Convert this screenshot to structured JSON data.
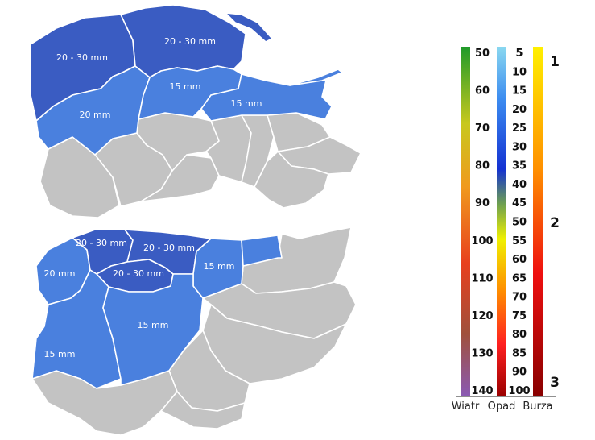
{
  "maps": {
    "upper": {
      "labels": [
        "20 - 30 mm",
        "20 - 30 mm",
        "20 mm",
        "15 mm",
        "15 mm"
      ]
    },
    "lower": {
      "labels": [
        "20 - 30 mm",
        "20 - 30 mm",
        "20 - 30 mm",
        "20 mm",
        "15 mm",
        "15 mm",
        "15 mm"
      ]
    }
  },
  "legend": {
    "wind": {
      "label": "Wiatr",
      "values": [
        "50",
        "60",
        "70",
        "80",
        "90",
        "100",
        "110",
        "120",
        "130",
        "140"
      ]
    },
    "precip": {
      "label": "Opad",
      "values": [
        "5",
        "10",
        "15",
        "20",
        "25",
        "30",
        "35",
        "40",
        "45",
        "50",
        "55",
        "60",
        "65",
        "70",
        "75",
        "80",
        "85",
        "90",
        "100"
      ]
    },
    "storm": {
      "label": "Burza",
      "values": [
        "1",
        "2",
        "3"
      ]
    }
  },
  "colors": {
    "dark_blue": "#3a5cc2",
    "medium_blue": "#4a80de",
    "no_warning": "#c3c3c3"
  }
}
